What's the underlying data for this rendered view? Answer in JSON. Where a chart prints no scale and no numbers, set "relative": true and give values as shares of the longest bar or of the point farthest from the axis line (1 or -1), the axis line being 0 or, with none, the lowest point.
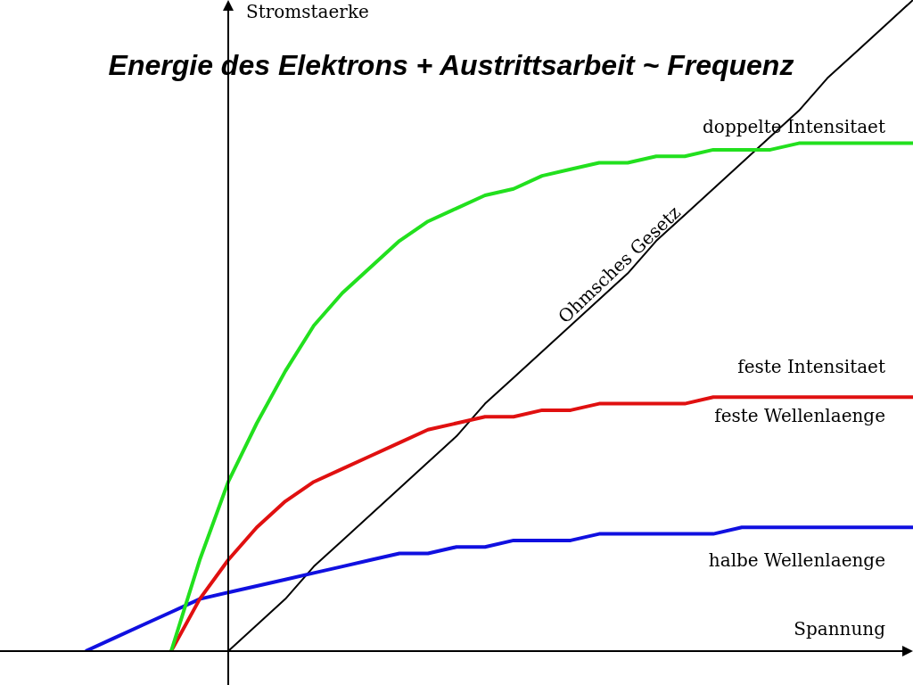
{
  "chart_data": {
    "type": "line",
    "title": "Energie des Elektrons + Austrittsarbeit ~ Frequenz",
    "xlabel": "Spannung",
    "ylabel": "Stromstaerke",
    "relative": true,
    "legend": false,
    "grid": false,
    "marker": "none",
    "categories": [
      null,
      null,
      null,
      null,
      null,
      null,
      null,
      null,
      null,
      null,
      null,
      null,
      null,
      null,
      null,
      null,
      null,
      null,
      null,
      null,
      null,
      null,
      null,
      null,
      null,
      null,
      null,
      null,
      null,
      null,
      null,
      null,
      null
    ],
    "series": [
      {
        "name": "doppelte Intensitaet",
        "color": "#22e01e",
        "values": [
          null,
          null,
          null,
          null,
          null,
          null,
          0,
          0.14,
          0.26,
          0.35,
          0.43,
          0.5,
          0.55,
          0.59,
          0.63,
          0.66,
          0.68,
          0.7,
          0.71,
          0.73,
          0.74,
          0.75,
          0.75,
          0.76,
          0.76,
          0.77,
          0.77,
          0.77,
          0.78,
          0.78,
          0.78,
          0.78,
          0.78
        ]
      },
      {
        "name": "feste Intensitaet",
        "color": "#e01010",
        "values": [
          null,
          null,
          null,
          null,
          null,
          null,
          0,
          0.08,
          0.14,
          0.19,
          0.23,
          0.26,
          0.28,
          0.3,
          0.32,
          0.34,
          0.35,
          0.36,
          0.36,
          0.37,
          0.37,
          0.38,
          0.38,
          0.38,
          0.38,
          0.39,
          0.39,
          0.39,
          0.39,
          0.39,
          0.39,
          0.39,
          0.39
        ]
      },
      {
        "name": "halbe Wellenlaenge",
        "color": "#1010e0",
        "values": [
          null,
          null,
          null,
          0,
          0.02,
          0.04,
          0.06,
          0.08,
          0.09,
          0.1,
          0.11,
          0.12,
          0.13,
          0.14,
          0.15,
          0.15,
          0.16,
          0.16,
          0.17,
          0.17,
          0.17,
          0.18,
          0.18,
          0.18,
          0.18,
          0.18,
          0.19,
          0.19,
          0.19,
          0.19,
          0.19,
          0.19,
          0.19
        ]
      },
      {
        "name": "Ohmsches Gesetz",
        "color": "#000000",
        "values": [
          null,
          null,
          null,
          null,
          null,
          null,
          null,
          null,
          0,
          0.04,
          0.08,
          0.13,
          0.17,
          0.21,
          0.25,
          0.29,
          0.33,
          0.38,
          0.42,
          0.46,
          0.5,
          0.54,
          0.58,
          0.63,
          0.67,
          0.71,
          0.75,
          0.79,
          0.83,
          0.88,
          0.92,
          0.96,
          1
        ]
      }
    ],
    "annotations": [
      "feste Wellenlaenge"
    ]
  }
}
